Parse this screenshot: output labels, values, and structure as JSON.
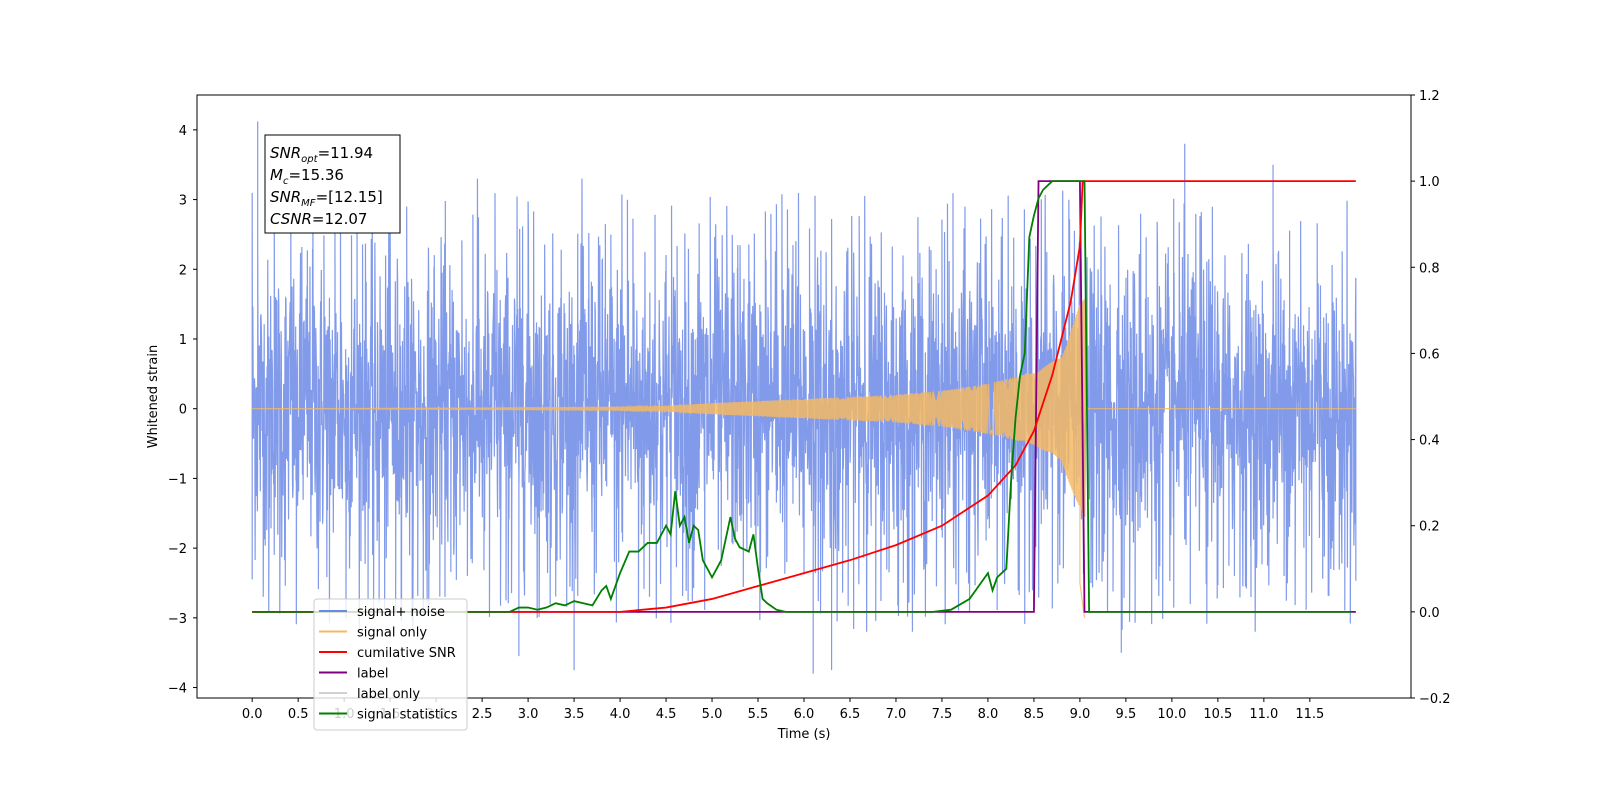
{
  "chart_data": {
    "type": "line",
    "xlabel": "Time (s)",
    "ylabel": "Whitened strain",
    "xlim": [
      -0.6,
      12.6
    ],
    "ylim": [
      -4.15,
      4.5
    ],
    "y2lim": [
      -0.2,
      1.2
    ],
    "x_ticks": [
      0.0,
      0.5,
      1.0,
      1.5,
      2.0,
      2.5,
      3.0,
      3.5,
      4.0,
      4.5,
      5.0,
      5.5,
      6.0,
      6.5,
      7.0,
      7.5,
      8.0,
      8.5,
      9.0,
      9.5,
      10.0,
      10.5,
      11.0,
      11.5
    ],
    "x_tick_labels": [
      "0.0",
      "0.5",
      "1.0",
      "1.5",
      "2.0",
      "2.5",
      "3.0",
      "3.5",
      "4.0",
      "4.5",
      "5.0",
      "5.5",
      "6.0",
      "6.5",
      "7.0",
      "7.5",
      "8.0",
      "8.5",
      "9.0",
      "9.5",
      "10.0",
      "10.5",
      "11.0",
      "11.5"
    ],
    "y_ticks": [
      -4,
      -3,
      -2,
      -1,
      0,
      1,
      2,
      3,
      4
    ],
    "y_tick_labels": [
      "−4",
      "−3",
      "−2",
      "−1",
      "0",
      "1",
      "2",
      "3",
      "4"
    ],
    "y2_ticks": [
      -0.2,
      0.0,
      0.2,
      0.4,
      0.6,
      0.8,
      1.0,
      1.2
    ],
    "y2_tick_labels": [
      "−0.2",
      "0.0",
      "0.2",
      "0.4",
      "0.6",
      "0.8",
      "1.0",
      "1.2"
    ],
    "info_box": [
      {
        "main": "SNR",
        "sub": "opt",
        "rest": "=11.94"
      },
      {
        "main": "M",
        "sub": "c",
        "rest": "=15.36"
      },
      {
        "main": "SNR",
        "sub": "MF",
        "rest": "=[12.15]"
      },
      {
        "main": "CSNR",
        "sub": "",
        "rest": "=12.07"
      }
    ],
    "legend": {
      "placement": "lower-left",
      "entries": [
        {
          "label": "signal+ noise",
          "color": "#6b88e6"
        },
        {
          "label": "signal only",
          "color": "#f5b964"
        },
        {
          "label": "cumilative SNR",
          "color": "#ff0000"
        },
        {
          "label": "label",
          "color": "#800080"
        },
        {
          "label": "label only",
          "color": "#d0d0d0"
        },
        {
          "label": "signal statistics",
          "color": "#008000"
        }
      ]
    },
    "series": [
      {
        "name": "signal+ noise",
        "axis": "left",
        "color": "#6b88e6",
        "kind": "noise",
        "x_range": [
          0.0,
          12.0
        ],
        "typical_band": [
          -1.7,
          1.7
        ],
        "peaks": [
          [
            0.06,
            4.12
          ],
          [
            10.14,
            3.8
          ],
          [
            11.1,
            3.5
          ],
          [
            0.0,
            -2.45
          ],
          [
            3.5,
            -3.75
          ],
          [
            6.1,
            -3.8
          ],
          [
            6.3,
            -3.75
          ],
          [
            9.45,
            -3.5
          ],
          [
            2.9,
            -3.55
          ]
        ]
      },
      {
        "name": "signal only",
        "axis": "left",
        "color": "#f5b964",
        "kind": "chirp",
        "x_range": [
          0.0,
          12.0
        ],
        "envelope": [
          [
            0.0,
            0.0
          ],
          [
            4.0,
            0.02
          ],
          [
            4.5,
            0.04
          ],
          [
            5.0,
            0.08
          ],
          [
            6.0,
            0.14
          ],
          [
            7.0,
            0.2
          ],
          [
            7.5,
            0.26
          ],
          [
            8.0,
            0.36
          ],
          [
            8.5,
            0.52
          ],
          [
            8.8,
            0.75
          ],
          [
            9.0,
            1.5
          ],
          [
            9.06,
            1.6
          ],
          [
            9.1,
            0.0
          ],
          [
            12.0,
            0.0
          ]
        ],
        "tail_dip": [
          [
            9.0,
            -2.5
          ],
          [
            9.05,
            -3.0
          ]
        ]
      },
      {
        "name": "cumilative SNR",
        "axis": "right",
        "color": "#ff0000",
        "x": [
          0.0,
          4.0,
          4.5,
          5.0,
          5.5,
          6.0,
          6.5,
          7.0,
          7.5,
          8.0,
          8.3,
          8.5,
          8.7,
          8.9,
          9.0,
          9.03,
          9.05,
          12.0
        ],
        "values": [
          0.0,
          0.0,
          0.01,
          0.03,
          0.06,
          0.09,
          0.12,
          0.155,
          0.2,
          0.27,
          0.34,
          0.42,
          0.55,
          0.72,
          0.85,
          1.0,
          1.0,
          1.0
        ]
      },
      {
        "name": "label",
        "axis": "right",
        "color": "#800080",
        "x": [
          0.0,
          8.5,
          8.55,
          9.0,
          9.05,
          12.0
        ],
        "values": [
          0.0,
          0.0,
          1.0,
          1.0,
          0.0,
          0.0
        ]
      },
      {
        "name": "signal statistics",
        "axis": "right",
        "color": "#008000",
        "x": [
          0.0,
          2.8,
          2.9,
          3.0,
          3.1,
          3.2,
          3.3,
          3.4,
          3.5,
          3.6,
          3.7,
          3.8,
          3.85,
          3.9,
          4.0,
          4.1,
          4.2,
          4.3,
          4.4,
          4.5,
          4.55,
          4.6,
          4.65,
          4.7,
          4.75,
          4.8,
          4.85,
          4.9,
          5.0,
          5.05,
          5.1,
          5.2,
          5.25,
          5.3,
          5.4,
          5.45,
          5.5,
          5.55,
          5.6,
          5.7,
          5.8,
          7.4,
          7.6,
          7.8,
          7.9,
          8.0,
          8.05,
          8.1,
          8.2,
          8.25,
          8.3,
          8.35,
          8.4,
          8.45,
          8.5,
          8.55,
          8.6,
          8.65,
          8.7,
          8.8,
          9.05,
          9.1,
          11.95
        ],
        "values": [
          0.0,
          0.0,
          0.01,
          0.01,
          0.005,
          0.01,
          0.02,
          0.015,
          0.025,
          0.02,
          0.015,
          0.05,
          0.06,
          0.03,
          0.09,
          0.14,
          0.14,
          0.16,
          0.16,
          0.2,
          0.18,
          0.28,
          0.2,
          0.22,
          0.16,
          0.2,
          0.19,
          0.12,
          0.08,
          0.1,
          0.12,
          0.22,
          0.17,
          0.15,
          0.14,
          0.18,
          0.1,
          0.03,
          0.02,
          0.005,
          0.0,
          0.0,
          0.005,
          0.03,
          0.06,
          0.09,
          0.05,
          0.08,
          0.1,
          0.3,
          0.45,
          0.55,
          0.6,
          0.87,
          0.92,
          0.96,
          0.98,
          0.99,
          1.0,
          1.0,
          1.0,
          0.0,
          0.0
        ]
      }
    ]
  }
}
